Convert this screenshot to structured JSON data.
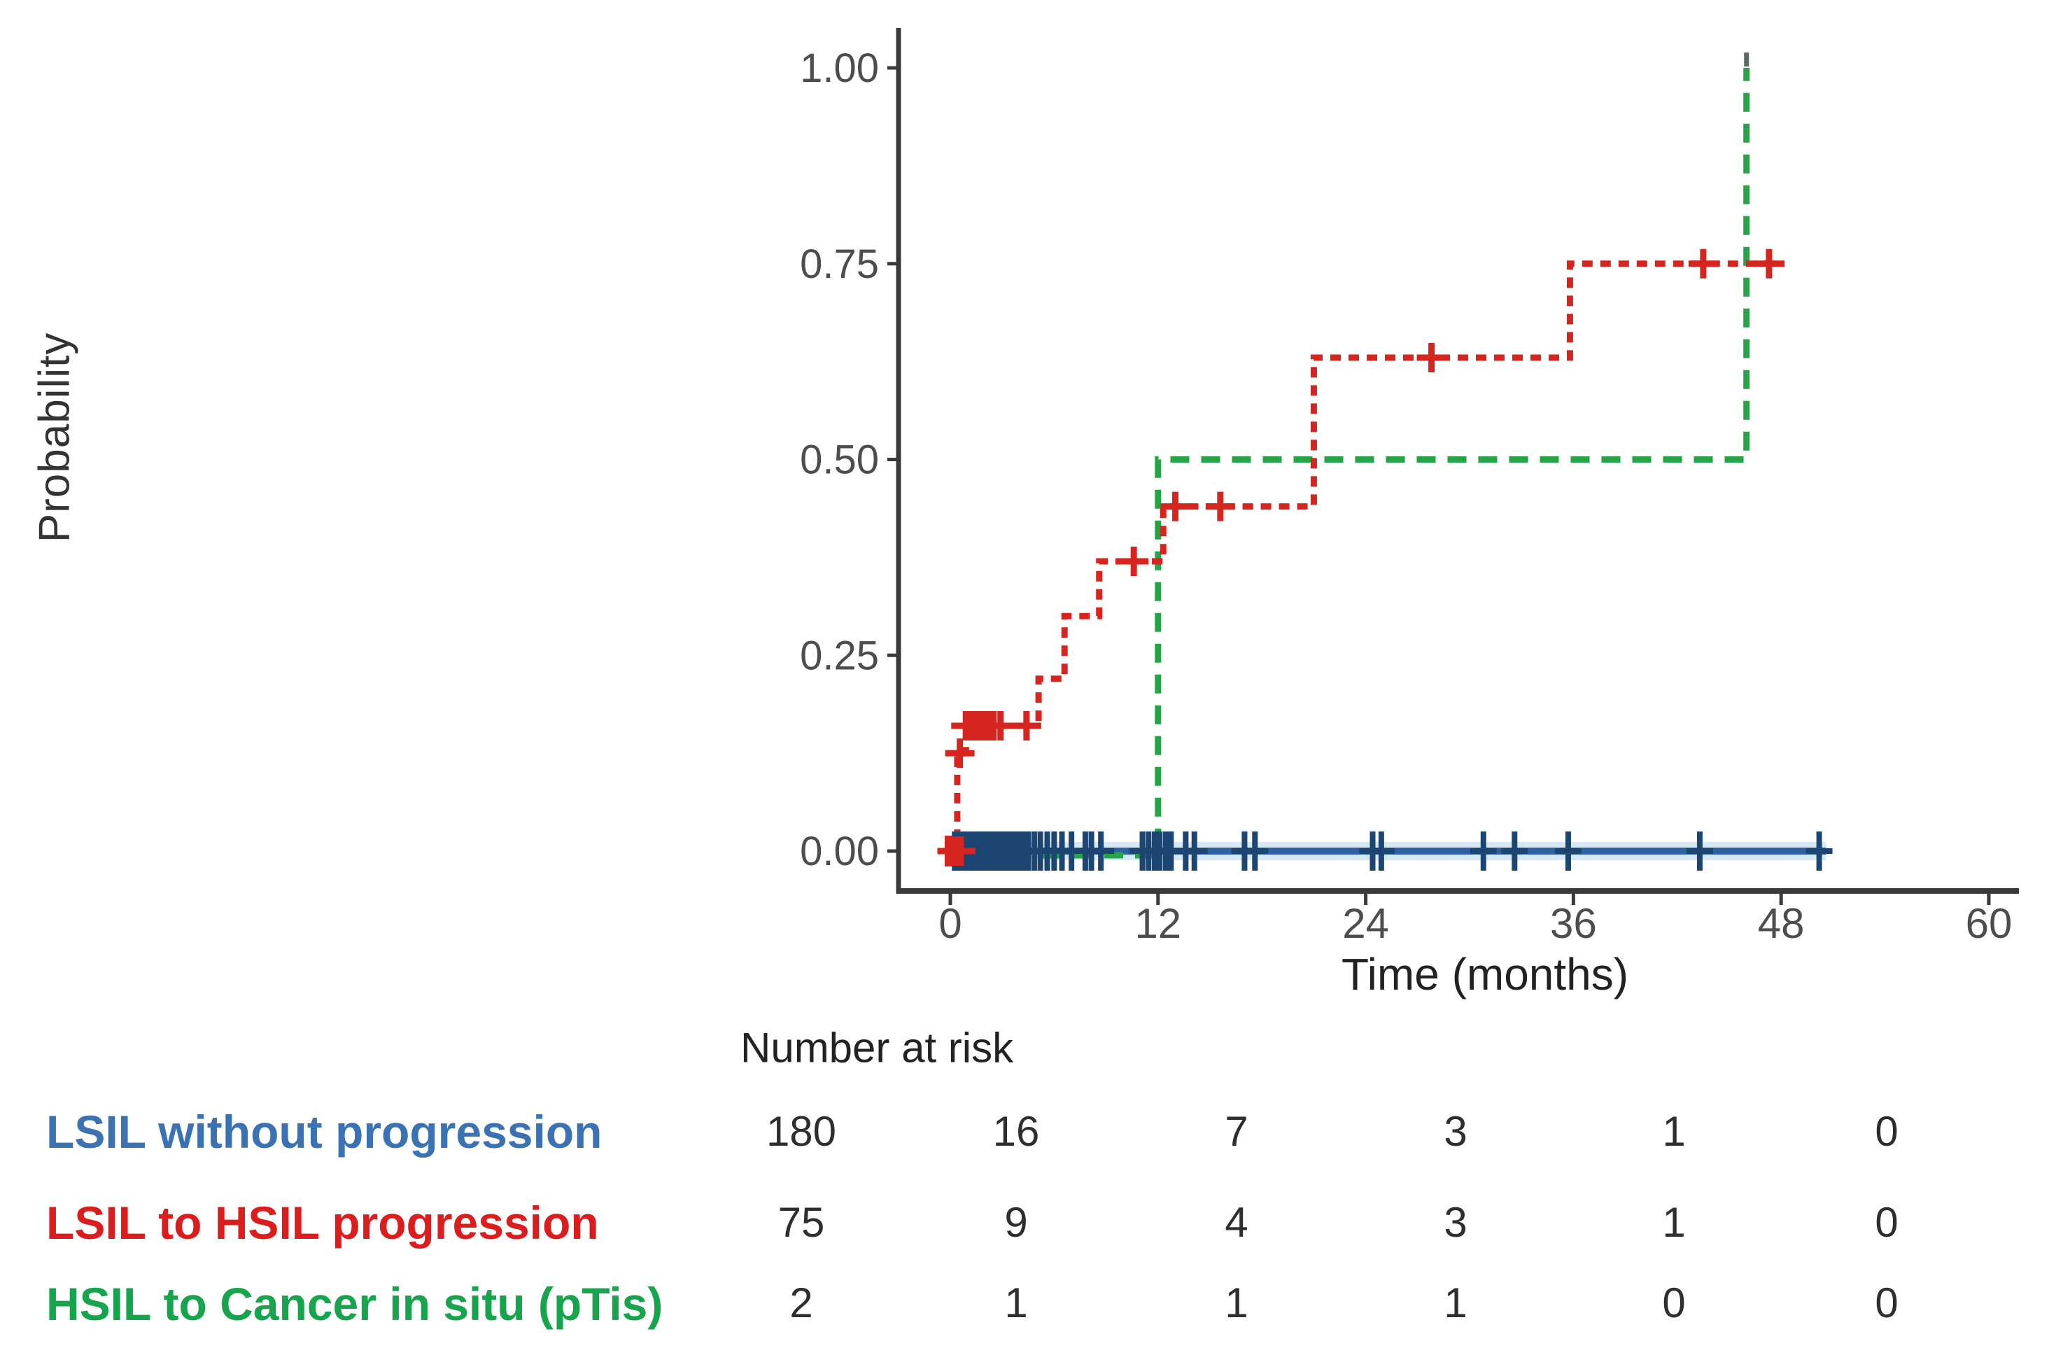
{
  "chart_data": {
    "type": "line",
    "subtype": "kaplan-meier-step",
    "title": "",
    "xlabel": "Time (months)",
    "ylabel": "Probability",
    "xlim": [
      0,
      60
    ],
    "ylim": [
      0,
      1
    ],
    "x_ticks": [
      0,
      12,
      24,
      36,
      48,
      60
    ],
    "y_ticks": [
      1.0,
      0.75,
      0.5,
      0.25,
      0.0
    ],
    "y_tick_labels": [
      "1.00",
      "0.75",
      "0.50",
      "0.25",
      "0.00"
    ],
    "grid": false,
    "legend_position": "none",
    "axis_color": "#3a3a3a",
    "tick_label_color": "#4d4d4d",
    "series": [
      {
        "name": "HSIL to Cancer in situ (pTis)",
        "color": "#27a348",
        "style": "dashed-long",
        "steps": [
          [
            0,
            0
          ],
          [
            12,
            0
          ],
          [
            12,
            0.5
          ],
          [
            46,
            0.5
          ],
          [
            46,
            1.0
          ]
        ],
        "censors": [],
        "end_marker_color": "#5a6b5f"
      },
      {
        "name": "LSIL without progression",
        "color": "#2e62a1",
        "halo_color": "#d7e8f5",
        "censor_color": "#1c4572",
        "style": "solid",
        "steps": [
          [
            -0.2,
            0
          ],
          [
            50.6,
            0
          ]
        ],
        "censors": [
          [
            0.25,
            0
          ],
          [
            0.55,
            0
          ],
          [
            0.8,
            0
          ],
          [
            1.05,
            0
          ],
          [
            1.3,
            0
          ],
          [
            1.55,
            0
          ],
          [
            1.8,
            0
          ],
          [
            2.05,
            0
          ],
          [
            2.3,
            0
          ],
          [
            2.55,
            0
          ],
          [
            2.8,
            0
          ],
          [
            3.05,
            0
          ],
          [
            3.3,
            0
          ],
          [
            3.6,
            0
          ],
          [
            3.9,
            0
          ],
          [
            4.2,
            0
          ],
          [
            4.5,
            0
          ],
          [
            4.85,
            0
          ],
          [
            5.2,
            0
          ],
          [
            5.6,
            0
          ],
          [
            6.0,
            0
          ],
          [
            6.45,
            0
          ],
          [
            7.0,
            0
          ],
          [
            7.8,
            0
          ],
          [
            8.15,
            0
          ],
          [
            8.7,
            0
          ],
          [
            11.1,
            0
          ],
          [
            11.45,
            0
          ],
          [
            11.8,
            0
          ],
          [
            12.1,
            0
          ],
          [
            12.45,
            0
          ],
          [
            12.75,
            0
          ],
          [
            13.6,
            0
          ],
          [
            14.1,
            0
          ],
          [
            17.0,
            0
          ],
          [
            17.6,
            0
          ],
          [
            24.4,
            0
          ],
          [
            24.9,
            0
          ],
          [
            30.8,
            0
          ],
          [
            32.6,
            0
          ],
          [
            35.7,
            0
          ],
          [
            43.3,
            0
          ],
          [
            50.2,
            0
          ]
        ]
      },
      {
        "name": "LSIL to HSIL progression",
        "color": "#d6251f",
        "style": "dashed-short",
        "origin_blob": true,
        "steps": [
          [
            0,
            0
          ],
          [
            0.4,
            0
          ],
          [
            0.4,
            0.125
          ],
          [
            0.9,
            0.125
          ],
          [
            0.9,
            0.16
          ],
          [
            5.1,
            0.16
          ],
          [
            5.1,
            0.22
          ],
          [
            6.6,
            0.22
          ],
          [
            6.6,
            0.3
          ],
          [
            8.6,
            0.3
          ],
          [
            8.6,
            0.37
          ],
          [
            12.3,
            0.37
          ],
          [
            12.3,
            0.44
          ],
          [
            21,
            0.44
          ],
          [
            21,
            0.63
          ],
          [
            35.8,
            0.63
          ],
          [
            35.8,
            0.75
          ],
          [
            48.2,
            0.75
          ]
        ],
        "censors": [
          [
            0.1,
            0
          ],
          [
            0.35,
            0
          ],
          [
            0.6,
            0
          ],
          [
            0.55,
            0.125
          ],
          [
            0.9,
            0.16
          ],
          [
            1.15,
            0.16
          ],
          [
            1.4,
            0.16
          ],
          [
            1.65,
            0.16
          ],
          [
            1.9,
            0.16
          ],
          [
            2.2,
            0.16
          ],
          [
            2.5,
            0.16
          ],
          [
            2.9,
            0.16
          ],
          [
            4.4,
            0.16
          ],
          [
            10.6,
            0.37
          ],
          [
            13.0,
            0.44
          ],
          [
            15.6,
            0.44
          ],
          [
            27.8,
            0.63
          ],
          [
            43.5,
            0.75
          ],
          [
            47.3,
            0.75
          ]
        ]
      }
    ],
    "risk_table": {
      "header": "Number at risk",
      "times": [
        0,
        12,
        24,
        36,
        48,
        60
      ],
      "value_color": "#2e2e2e",
      "rows": [
        {
          "label": "LSIL without progression",
          "color": "#3a72b4",
          "values": [
            180,
            16,
            7,
            3,
            1,
            0
          ]
        },
        {
          "label": "LSIL to HSIL progression",
          "color": "#dc1d1d",
          "values": [
            75,
            9,
            4,
            3,
            1,
            0
          ]
        },
        {
          "label": "HSIL to Cancer in situ (pTis)",
          "color": "#16a44c",
          "values": [
            2,
            1,
            1,
            1,
            0,
            0
          ]
        }
      ]
    }
  },
  "labels": {
    "ylabel": "Probability",
    "xlabel": "Time (months)",
    "risk_header": "Number at risk",
    "risk_row_0": "LSIL without progression",
    "risk_row_1": "LSIL to HSIL progression",
    "risk_row_2": "HSIL to Cancer in situ (pTis)"
  }
}
